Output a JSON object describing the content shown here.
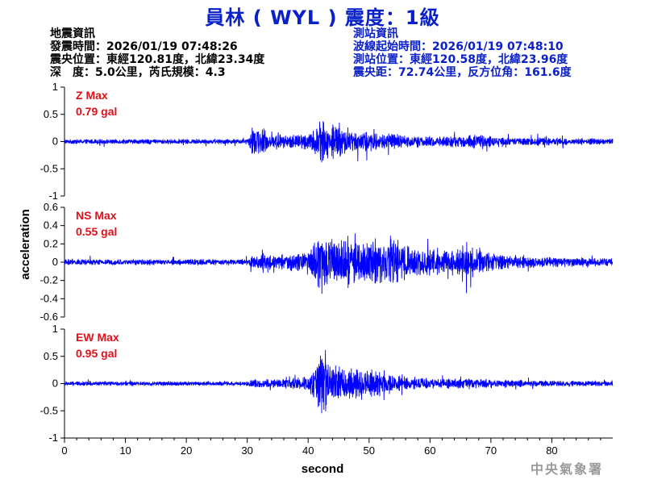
{
  "header": {
    "title": "員林 ( WYL ) 震度：1級"
  },
  "earthquake_info": {
    "heading": "地震資訊",
    "origin_time": "發震時間：2026/01/19 07:48:26",
    "epicenter": "震央位置：東經120.81度，北緯23.34度",
    "depth_magnitude": "深　度：5.0公里，芮氏規模：4.3"
  },
  "station_info": {
    "heading": "測站資訊",
    "wave_start": "波線起始時間：2026/01/19 07:48:10",
    "location": "測站位置：東經120.58度，北緯23.96度",
    "distance": "震央距：72.74公里，反方位角：161.6度"
  },
  "footer": {
    "agency": "中央氣象署"
  },
  "chart_data": {
    "type": "line",
    "xlabel": "second",
    "ylabel": "acceleration",
    "x_range": [
      0,
      90
    ],
    "x_ticks": [
      "0",
      "10",
      "20",
      "30",
      "40",
      "50",
      "60",
      "70",
      "80"
    ],
    "line_color": "#0000ff",
    "panels": [
      {
        "name": "Z",
        "max_label": "Z Max",
        "max_value": "0.79 gal",
        "ylim": [
          -1,
          1
        ],
        "y_ticks": [
          "1",
          "0.5",
          "0",
          "-0.5",
          "-1"
        ],
        "envelope": [
          [
            0,
            0.07
          ],
          [
            30,
            0.07
          ],
          [
            30.8,
            0.42
          ],
          [
            33,
            0.28
          ],
          [
            36,
            0.18
          ],
          [
            40.5,
            0.26
          ],
          [
            42,
            0.74
          ],
          [
            43,
            0.45
          ],
          [
            48,
            0.3
          ],
          [
            52,
            0.26
          ],
          [
            56,
            0.18
          ],
          [
            62,
            0.14
          ],
          [
            68,
            0.2
          ],
          [
            72,
            0.12
          ],
          [
            82,
            0.1
          ],
          [
            90,
            0.09
          ]
        ]
      },
      {
        "name": "NS",
        "max_label": "NS Max",
        "max_value": "0.55 gal",
        "ylim": [
          -0.6,
          0.6
        ],
        "y_ticks": [
          "0.6",
          "0.4",
          "0.2",
          "0",
          "-0.2",
          "-0.4",
          "-0.6"
        ],
        "envelope": [
          [
            0,
            0.05
          ],
          [
            30,
            0.05
          ],
          [
            31,
            0.12
          ],
          [
            35,
            0.12
          ],
          [
            40,
            0.16
          ],
          [
            42,
            0.45
          ],
          [
            44,
            0.4
          ],
          [
            48,
            0.33
          ],
          [
            53,
            0.38
          ],
          [
            56,
            0.28
          ],
          [
            60,
            0.22
          ],
          [
            64,
            0.2
          ],
          [
            68,
            0.24
          ],
          [
            72,
            0.12
          ],
          [
            80,
            0.08
          ],
          [
            90,
            0.07
          ]
        ]
      },
      {
        "name": "EW",
        "max_label": "EW Max",
        "max_value": "0.95 gal",
        "ylim": [
          -1,
          1
        ],
        "y_ticks": [
          "1",
          "0.5",
          "0",
          "-0.5",
          "-1"
        ],
        "envelope": [
          [
            0,
            0.06
          ],
          [
            30,
            0.06
          ],
          [
            31,
            0.12
          ],
          [
            35,
            0.12
          ],
          [
            40,
            0.18
          ],
          [
            42,
            0.85
          ],
          [
            44,
            0.45
          ],
          [
            48,
            0.45
          ],
          [
            52,
            0.3
          ],
          [
            56,
            0.18
          ],
          [
            62,
            0.14
          ],
          [
            68,
            0.14
          ],
          [
            72,
            0.1
          ],
          [
            82,
            0.08
          ],
          [
            90,
            0.07
          ]
        ]
      }
    ]
  }
}
